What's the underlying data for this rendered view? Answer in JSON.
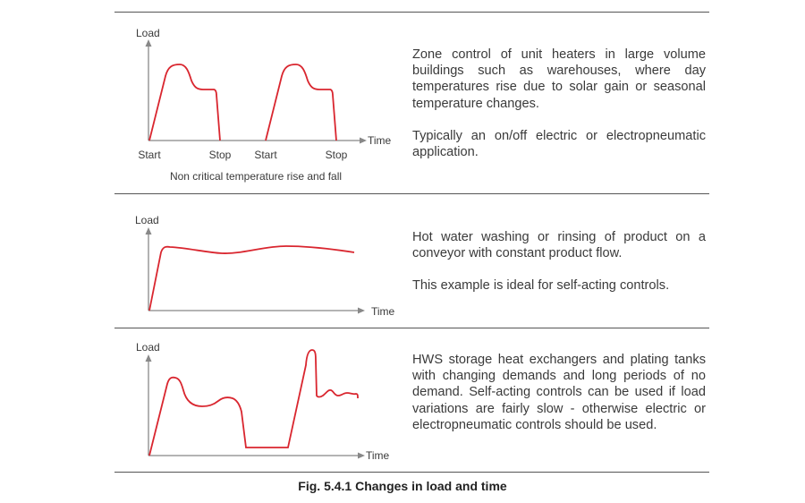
{
  "colors": {
    "curve": "#d9262f",
    "axis": "#888888",
    "rule": "#555555",
    "text": "#3a3a3a"
  },
  "panels": [
    {
      "y_label": "Load",
      "x_label": "Time",
      "tick_labels": [
        "Start",
        "Stop",
        "Start",
        "Stop"
      ],
      "subcaption": "Non critical temperature rise and fall",
      "paragraphs": [
        "Zone control of unit heaters in large volume buildings such as warehouses, where day temperatures rise due to solar gain or seasonal temperature changes.",
        "Typically an on/off electric or electropneumatic application."
      ]
    },
    {
      "y_label": "Load",
      "x_label": "Time",
      "paragraphs": [
        "Hot water washing or rinsing of product on a conveyor with constant product flow.",
        "This example is ideal for self-acting controls."
      ]
    },
    {
      "y_label": "Load",
      "x_label": "Time",
      "paragraphs": [
        "HWS storage heat exchangers and plating tanks with changing demands and long periods of no demand. Self-acting controls can be used if load variations are fairly slow - otherwise electric or electropneumatic controls should be used."
      ]
    }
  ],
  "caption": "Fig. 5.4.1 Changes in load and time"
}
